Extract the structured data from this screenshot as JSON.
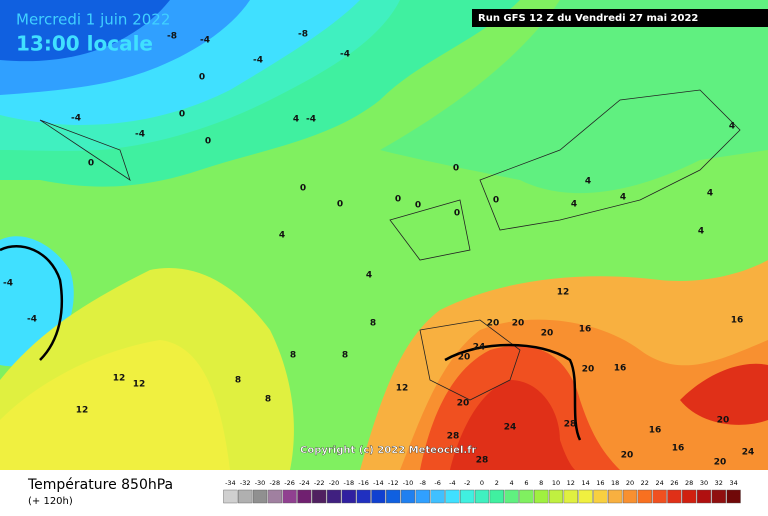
{
  "header": {
    "date": "Mercredi 1 juin 2022",
    "time": "13:00 locale",
    "run": "Run GFS 12 Z du Vendredi 27 mai 2022"
  },
  "copyright": "Copyright (c) 2022 Meteociel.fr",
  "footer": {
    "title": "Température 850hPa",
    "lead": "(+ 120h)"
  },
  "scale": {
    "values": [
      -34,
      -32,
      -30,
      -28,
      -26,
      -24,
      -22,
      -20,
      -18,
      -16,
      -14,
      -12,
      -10,
      -8,
      -6,
      -4,
      -2,
      0,
      2,
      4,
      6,
      8,
      10,
      12,
      14,
      16,
      18,
      20,
      22,
      24,
      26,
      28,
      30,
      32,
      34
    ],
    "colors": [
      "#d0d0d0",
      "#b0b0b0",
      "#909090",
      "#a080a0",
      "#904090",
      "#702070",
      "#502060",
      "#402080",
      "#3020a0",
      "#2030c0",
      "#1040d0",
      "#1060e0",
      "#2080f0",
      "#30a0ff",
      "#40c0ff",
      "#40e0ff",
      "#40f0e0",
      "#40f0c0",
      "#40f0a0",
      "#60f080",
      "#80f060",
      "#a0f040",
      "#c0f040",
      "#e0f040",
      "#f0f040",
      "#f8d040",
      "#f8b040",
      "#f89030",
      "#f87020",
      "#f05020",
      "#e03018",
      "#d02010",
      "#b01010",
      "#901010",
      "#700808"
    ]
  },
  "contour_labels": [
    -8,
    -4,
    -8,
    -4,
    -4,
    0,
    0,
    -4,
    0,
    -4,
    4,
    -4,
    0,
    0,
    0,
    0,
    0,
    0,
    4,
    4,
    4,
    4,
    4,
    4,
    4,
    4,
    0,
    0,
    -4,
    -4,
    8,
    8,
    8,
    8,
    8,
    12,
    12,
    12,
    12,
    12,
    16,
    16,
    16,
    20,
    20,
    20,
    20,
    20,
    24,
    24,
    28,
    28,
    28,
    20,
    20,
    16,
    16,
    20,
    20,
    24
  ]
}
